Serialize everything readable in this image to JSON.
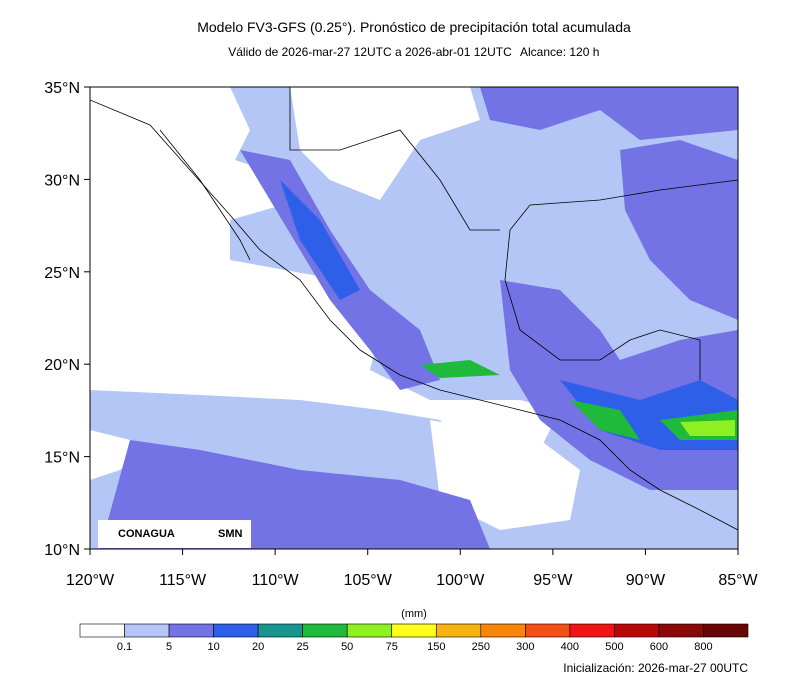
{
  "title": "Modelo FV3-GFS (0.25°). Pronóstico de precipitación total acumulada",
  "subtitle": "Válido de 2026-mar-27 12UTC a 2026-abr-01 12UTC",
  "range_label": "Alcance: 120 h",
  "map": {
    "lat_labels": [
      "35°N",
      "30°N",
      "25°N",
      "20°N",
      "15°N",
      "10°N"
    ],
    "lon_labels": [
      "120°W",
      "115°W",
      "110°W",
      "105°W",
      "100°W",
      "95°W",
      "90°W",
      "85°W"
    ]
  },
  "logos": [
    "CONAGUA",
    "SMN"
  ],
  "colorbar": {
    "unit": "(mm)",
    "labels": [
      "0.1",
      "5",
      "10",
      "20",
      "25",
      "50",
      "75",
      "150",
      "250",
      "300",
      "400",
      "500",
      "600",
      "800"
    ],
    "colors": [
      "#ffffff",
      "#b4c6f6",
      "#7373e6",
      "#2e5fe8",
      "#19948f",
      "#1fb93c",
      "#8ef021",
      "#ffff1e",
      "#f8b313",
      "#f8860b",
      "#f54e14",
      "#f01414",
      "#b90808",
      "#8b0808",
      "#6a0505"
    ]
  },
  "footer": "Inicialización: 2026-mar-27 00UTC"
}
